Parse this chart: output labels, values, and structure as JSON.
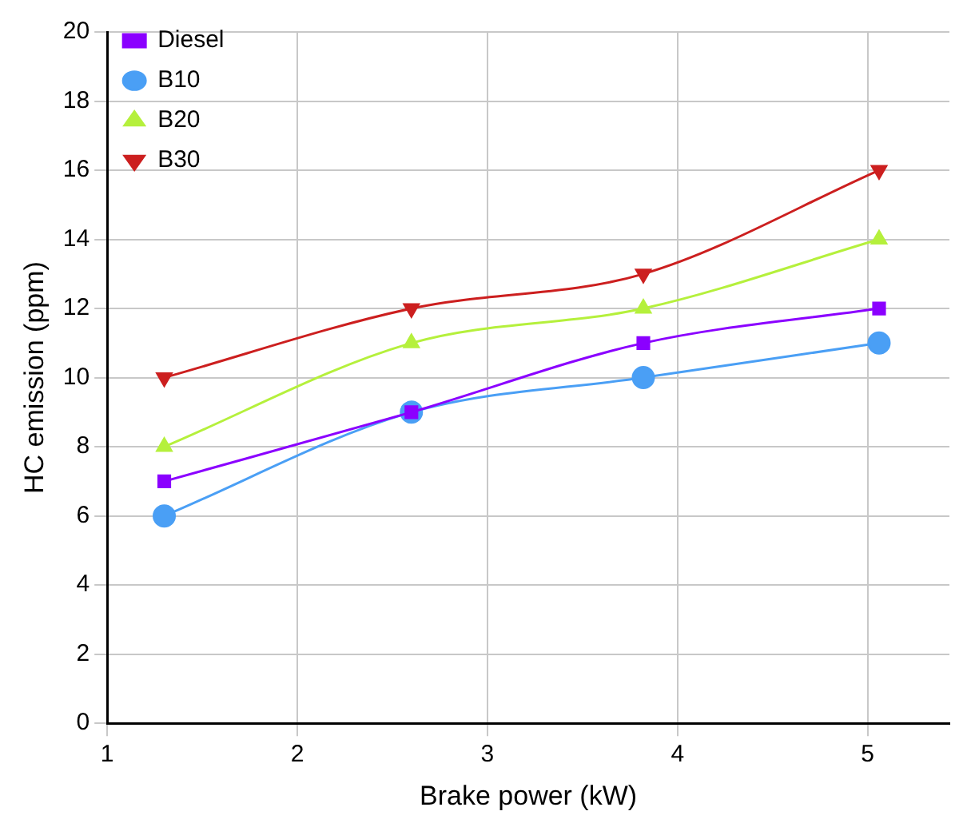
{
  "chart_data": {
    "type": "line",
    "xlabel": "Brake power (kW)",
    "ylabel": "HC emission (ppm)",
    "x": [
      1.3,
      2.6,
      3.82,
      5.06
    ],
    "series": [
      {
        "name": "Diesel",
        "color": "#8b00ff",
        "values": [
          7,
          9,
          11,
          12
        ],
        "marker": "square"
      },
      {
        "name": "B10",
        "color": "#4a9ff5",
        "values": [
          6,
          9,
          10,
          11
        ],
        "marker": "circle"
      },
      {
        "name": "B20",
        "color": "#b5f03c",
        "values": [
          8,
          11,
          12,
          14
        ],
        "marker": "triangle"
      },
      {
        "name": "B30",
        "color": "#cc1f1f",
        "values": [
          10,
          12,
          13,
          16
        ],
        "marker": "triangle-down"
      }
    ],
    "xlim": [
      1,
      5.43
    ],
    "xticks": [
      1,
      2,
      3,
      4,
      5
    ],
    "ylim": [
      0,
      20
    ],
    "yticks": [
      0,
      2,
      4,
      6,
      8,
      10,
      12,
      14,
      16,
      18,
      20
    ],
    "grid": true,
    "legend": "top left",
    "line_style": "solid"
  }
}
